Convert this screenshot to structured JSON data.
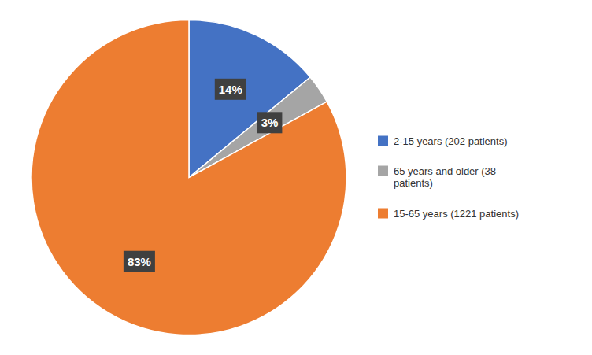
{
  "chart_data": {
    "type": "pie",
    "categories": [
      "2-15 years (202 patients)",
      "65 years and older (38\npatients)",
      "15-65 years (1221 patients)"
    ],
    "values": [
      14,
      3,
      83
    ],
    "value_labels": [
      "14%",
      "3%",
      "83%"
    ],
    "colors": [
      "#4472C4",
      "#A5A5A5",
      "#ED7D31"
    ],
    "data_labels": true,
    "legend": "right"
  }
}
